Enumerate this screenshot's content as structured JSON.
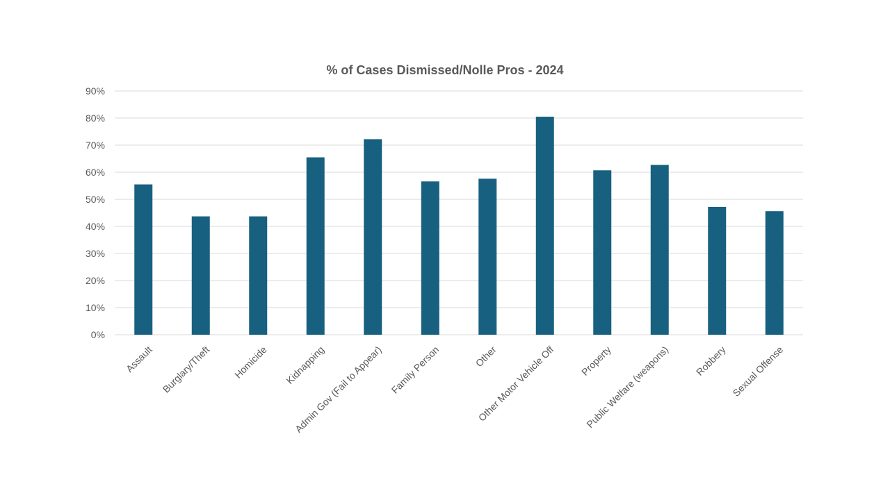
{
  "chart_data": {
    "type": "bar",
    "title": "% of Cases Dismissed/Nolle Pros - 2024",
    "xlabel": "",
    "ylabel": "",
    "ylim": [
      0,
      90
    ],
    "y_ticks": [
      0,
      10,
      20,
      30,
      40,
      50,
      60,
      70,
      80,
      90
    ],
    "y_tick_labels": [
      "0%",
      "10%",
      "20%",
      "30%",
      "40%",
      "50%",
      "60%",
      "70%",
      "80%",
      "90%"
    ],
    "grid": true,
    "legend": "none",
    "categories": [
      "Assault",
      "Burglary/Theft",
      "Homicide",
      "Kidnapping",
      "Admin Gov (Fail to Appear)",
      "Family Person",
      "Other",
      "Other Motor Vehicle Off",
      "Property",
      "Public Welfare (weapons)",
      "Robbery",
      "Sexual Offense"
    ],
    "values": [
      55.5,
      43.7,
      43.7,
      65.5,
      72.2,
      56.6,
      57.6,
      80.5,
      60.7,
      62.7,
      47.2,
      45.6
    ],
    "colors": {
      "bar": "#17607f",
      "grid": "#d9d9d9",
      "text": "#595959"
    }
  }
}
